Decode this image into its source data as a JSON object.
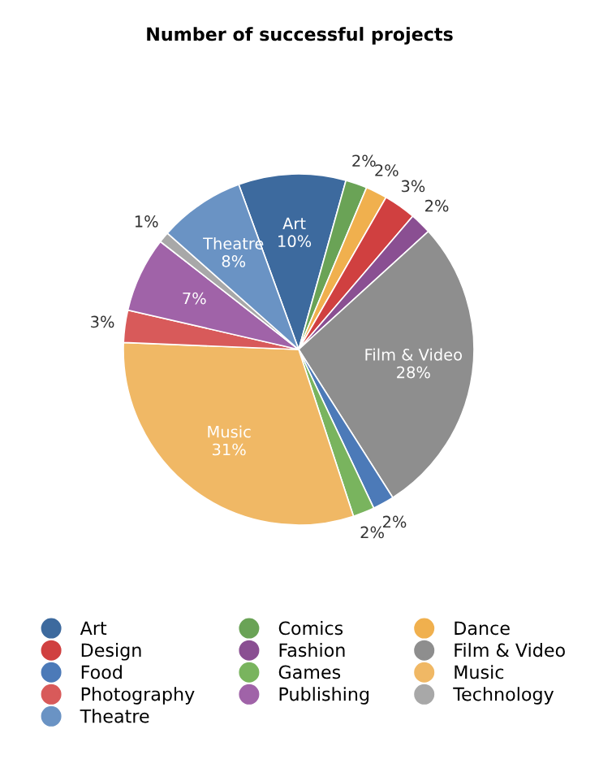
{
  "chart_data": {
    "type": "pie",
    "title": "Number of successful projects",
    "categories": [
      "Art",
      "Comics",
      "Dance",
      "Design",
      "Fashion",
      "Film & Video",
      "Food",
      "Games",
      "Music",
      "Photography",
      "Publishing",
      "Technology",
      "Theatre"
    ],
    "values": [
      10,
      2,
      2,
      3,
      2,
      28,
      2,
      2,
      31,
      3,
      7,
      1,
      8
    ],
    "colors": [
      "#3d6a9e",
      "#6aa356",
      "#f0b04e",
      "#d04040",
      "#8a4f92",
      "#8e8e8e",
      "#4c7ab8",
      "#79b45e",
      "#f0b865",
      "#d85a5a",
      "#a063a8",
      "#a8a8a8",
      "#6a93c4"
    ],
    "value_labels": [
      "Art\n10%",
      "2%",
      "2%",
      "3%",
      "2%",
      "Film & Video\n28%",
      "2%",
      "2%",
      "Music\n31%",
      "3%",
      "7%",
      "1%",
      "Theatre\n8%"
    ],
    "legend": "bottom"
  }
}
